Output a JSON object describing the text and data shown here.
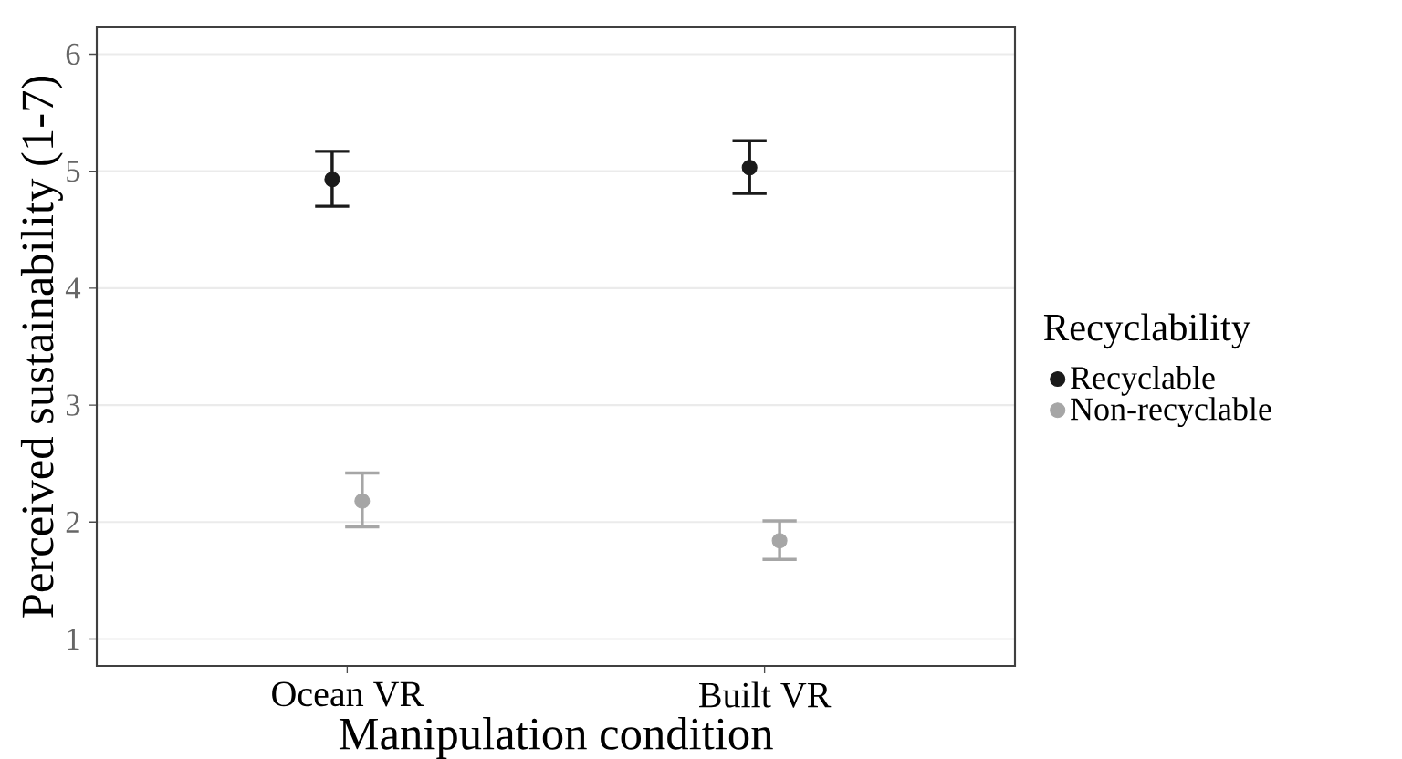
{
  "chart_data": {
    "type": "scatter",
    "xlabel": "Manipulation condition",
    "ylabel": "Perceived sustainability (1-7)",
    "legend_title": "Recyclability",
    "categories": [
      "Ocean VR",
      "Built VR"
    ],
    "series": [
      {
        "name": "Recyclable",
        "color": "#1a1a1a",
        "values": [
          4.93,
          5.03
        ],
        "errors": [
          [
            4.7,
            5.17
          ],
          [
            4.81,
            5.26
          ]
        ]
      },
      {
        "name": "Non-recyclable",
        "color": "#a6a6a6",
        "values": [
          2.18,
          1.84
        ],
        "errors": [
          [
            1.96,
            2.42
          ],
          [
            1.68,
            2.01
          ]
        ]
      }
    ],
    "ylim": [
      0.77,
      6.23
    ],
    "yticks": [
      1,
      2,
      3,
      4,
      5,
      6
    ],
    "grid": "y",
    "legend": "right",
    "marker": "circle"
  }
}
